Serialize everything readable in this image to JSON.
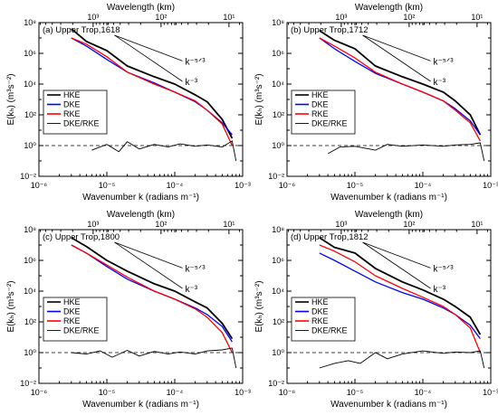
{
  "chart_data": [
    {
      "type": "line",
      "panel_label": "(a) Upper Trop,1618",
      "top_axis_label": "Wavelength (km)",
      "top_ticks": [
        "10³",
        "10²",
        "10¹"
      ],
      "x_ticks": [
        "10⁻⁶",
        "10⁻⁵",
        "10⁻⁴",
        "10⁻³"
      ],
      "y_ticks": [
        "10⁻²",
        "10⁰",
        "10²",
        "10⁴",
        "10⁶",
        "10⁸"
      ],
      "xlabel": "Wavenumber k (radians m⁻¹)",
      "ylabel": "E(kₕ) (m³s⁻²)",
      "xscale": "log",
      "yscale": "log",
      "xlim": [
        1e-06,
        0.001
      ],
      "ylim": [
        0.01,
        100000000.0
      ],
      "legend_position": "left",
      "ref_lines": [
        "k⁻⁵ᐟ³",
        "k⁻³"
      ],
      "dashed_reference": 1,
      "series": [
        {
          "name": "HKE",
          "color": "#000000",
          "x": [
            3e-06,
            5e-06,
            1e-05,
            2e-05,
            5e-05,
            0.0001,
            0.0002,
            0.0003,
            0.0005,
            0.0007
          ],
          "values": [
            40000000.0,
            6000000.0,
            1500000.0,
            150000.0,
            30000.0,
            10000.0,
            2000.0,
            700,
            50,
            3
          ]
        },
        {
          "name": "DKE",
          "color": "#0000ff",
          "x": [
            3e-06,
            5e-06,
            1e-05,
            2e-05,
            5e-05,
            0.0001,
            0.0002,
            0.0003,
            0.0005,
            0.0007
          ],
          "values": [
            10000000.0,
            3000000.0,
            400000.0,
            60000.0,
            12000.0,
            3000.0,
            700,
            200,
            30,
            5
          ]
        },
        {
          "name": "RKE",
          "color": "#ff0000",
          "x": [
            3e-06,
            5e-06,
            1e-05,
            2e-05,
            5e-05,
            0.0001,
            0.0002,
            0.0003,
            0.0005,
            0.0007
          ],
          "values": [
            10000000.0,
            4000000.0,
            600000.0,
            60000.0,
            10000.0,
            3000.0,
            800,
            200,
            25,
            1
          ]
        },
        {
          "name": "DKE/RKE",
          "color": "#000000",
          "x": [
            6e-06,
            1e-05,
            1.5e-05,
            2e-05,
            3e-05,
            5e-05,
            8e-05,
            0.00012,
            0.0002,
            0.0003,
            0.0005,
            0.0007,
            0.0008
          ],
          "values": [
            0.5,
            1.2,
            0.4,
            1.8,
            0.6,
            1.2,
            0.8,
            1.3,
            0.9,
            1.1,
            0.8,
            2,
            0.1
          ]
        }
      ]
    },
    {
      "type": "line",
      "panel_label": "(b) Upper Trop,1712",
      "top_axis_label": "Wavelength (km)",
      "top_ticks": [
        "10³",
        "10²",
        "10¹"
      ],
      "x_ticks": [
        "10⁻⁶",
        "10⁻⁵",
        "10⁻⁴",
        "10⁻³"
      ],
      "y_ticks": [
        "10⁻²",
        "10⁰",
        "10²",
        "10⁴",
        "10⁶",
        "10⁸"
      ],
      "xlabel": "Wavenumber k (radians m⁻¹)",
      "ylabel": "E(kₕ) (m³s⁻²)",
      "xscale": "log",
      "yscale": "log",
      "xlim": [
        1e-06,
        0.001
      ],
      "ylim": [
        0.01,
        100000000.0
      ],
      "legend_position": "left",
      "ref_lines": [
        "k⁻⁵ᐟ³",
        "k⁻³"
      ],
      "dashed_reference": 1,
      "series": [
        {
          "name": "HKE",
          "color": "#000000",
          "x": [
            3e-06,
            5e-06,
            1e-05,
            2e-05,
            5e-05,
            0.0001,
            0.0002,
            0.0003,
            0.0005,
            0.0007
          ],
          "values": [
            30000000.0,
            7000000.0,
            2000000.0,
            150000.0,
            30000.0,
            10000.0,
            3000.0,
            800,
            100,
            5
          ]
        },
        {
          "name": "DKE",
          "color": "#0000ff",
          "x": [
            3e-06,
            5e-06,
            1e-05,
            2e-05,
            5e-05,
            0.0001,
            0.0002,
            0.0003,
            0.0005,
            0.0007
          ],
          "values": [
            10000000.0,
            2000000.0,
            300000.0,
            50000.0,
            10000.0,
            3000.0,
            800,
            250,
            40,
            5
          ]
        },
        {
          "name": "RKE",
          "color": "#ff0000",
          "x": [
            3e-06,
            5e-06,
            1e-05,
            2e-05,
            5e-05,
            0.0001,
            0.0002,
            0.0003,
            0.0005,
            0.0007
          ],
          "values": [
            10000000.0,
            3000000.0,
            500000.0,
            60000.0,
            10000.0,
            3000.0,
            800,
            200,
            30,
            2
          ]
        },
        {
          "name": "DKE/RKE",
          "color": "#000000",
          "x": [
            4e-06,
            6e-06,
            1e-05,
            2e-05,
            3e-05,
            5e-05,
            0.0001,
            0.0002,
            0.0003,
            0.0005,
            0.0007,
            0.0008
          ],
          "values": [
            0.3,
            0.8,
            0.9,
            0.5,
            1.2,
            0.9,
            1.1,
            0.9,
            1.1,
            1.2,
            1.5,
            0.1
          ]
        }
      ]
    },
    {
      "type": "line",
      "panel_label": "(c) Upper Trop,1800",
      "top_axis_label": "Wavelength (km)",
      "top_ticks": [
        "10³",
        "10²",
        "10¹"
      ],
      "x_ticks": [
        "10⁻⁶",
        "10⁻⁵",
        "10⁻⁴",
        "10⁻³"
      ],
      "y_ticks": [
        "10⁻²",
        "10⁰",
        "10²",
        "10⁴",
        "10⁶",
        "10⁸"
      ],
      "xlabel": "Wavenumber k (radians m⁻¹)",
      "ylabel": "E(kₕ) (m³s⁻²)",
      "xscale": "log",
      "yscale": "log",
      "xlim": [
        1e-06,
        0.001
      ],
      "ylim": [
        0.01,
        100000000.0
      ],
      "legend_position": "left",
      "ref_lines": [
        "k⁻⁵ᐟ³",
        "k⁻³"
      ],
      "dashed_reference": 1,
      "series": [
        {
          "name": "HKE",
          "color": "#000000",
          "x": [
            3e-06,
            5e-06,
            1e-05,
            2e-05,
            5e-05,
            0.0001,
            0.0002,
            0.0003,
            0.0005,
            0.0007
          ],
          "values": [
            30000000.0,
            8000000.0,
            1000000.0,
            200000.0,
            30000.0,
            10000.0,
            2000.0,
            800,
            80,
            8
          ]
        },
        {
          "name": "DKE",
          "color": "#0000ff",
          "x": [
            3e-06,
            5e-06,
            1e-05,
            2e-05,
            5e-05,
            0.0001,
            0.0002,
            0.0003,
            0.0005,
            0.0007
          ],
          "values": [
            10000000.0,
            3000000.0,
            400000.0,
            60000.0,
            10000.0,
            3000.0,
            800,
            300,
            50,
            5
          ]
        },
        {
          "name": "RKE",
          "color": "#ff0000",
          "x": [
            3e-06,
            5e-06,
            1e-05,
            2e-05,
            5e-05,
            0.0001,
            0.0002,
            0.0003,
            0.0005,
            0.0007
          ],
          "values": [
            10000000.0,
            3000000.0,
            500000.0,
            80000.0,
            10000.0,
            3000.0,
            700,
            200,
            20,
            1
          ]
        },
        {
          "name": "DKE/RKE",
          "color": "#000000",
          "x": [
            3e-06,
            5e-06,
            8e-06,
            1.2e-05,
            2e-05,
            3e-05,
            5e-05,
            8e-05,
            0.00012,
            0.0002,
            0.0003,
            0.0005,
            0.0007,
            0.0008
          ],
          "values": [
            1,
            0.8,
            1.3,
            0.5,
            1.4,
            0.6,
            1.2,
            0.8,
            1.1,
            0.8,
            1.3,
            1.5,
            2,
            0.1
          ]
        }
      ]
    },
    {
      "type": "line",
      "panel_label": "(d) Upper Trop,1812",
      "top_axis_label": "Wavelength (km)",
      "top_ticks": [
        "10³",
        "10²",
        "10¹"
      ],
      "x_ticks": [
        "10⁻⁶",
        "10⁻⁵",
        "10⁻⁴",
        "10⁻³"
      ],
      "y_ticks": [
        "10⁻²",
        "10⁰",
        "10²",
        "10⁴",
        "10⁶",
        "10⁸"
      ],
      "xlabel": "Wavenumber k (radians m⁻¹)",
      "ylabel": "E(kₕ) (m³s⁻²)",
      "xscale": "log",
      "yscale": "log",
      "xlim": [
        1e-06,
        0.001
      ],
      "ylim": [
        0.01,
        100000000.0
      ],
      "legend_position": "left",
      "ref_lines": [
        "k⁻⁵ᐟ³",
        "k⁻³"
      ],
      "dashed_reference": 1,
      "series": [
        {
          "name": "HKE",
          "color": "#000000",
          "x": [
            3e-06,
            5e-06,
            1e-05,
            2e-05,
            5e-05,
            0.0001,
            0.0002,
            0.0003,
            0.0005,
            0.0007
          ],
          "values": [
            30000000.0,
            7000000.0,
            3000000.0,
            300000.0,
            40000.0,
            12000.0,
            3000.0,
            1000.0,
            200,
            15
          ]
        },
        {
          "name": "DKE",
          "color": "#0000ff",
          "x": [
            3e-06,
            5e-06,
            1e-05,
            2e-05,
            5e-05,
            0.0001,
            0.0002,
            0.0003,
            0.0005,
            0.0007
          ],
          "values": [
            3000000.0,
            1000000.0,
            200000.0,
            40000.0,
            8000.0,
            3000.0,
            800,
            300,
            60,
            8
          ]
        },
        {
          "name": "RKE",
          "color": "#ff0000",
          "x": [
            3e-06,
            5e-06,
            1e-05,
            2e-05,
            5e-05,
            0.0001,
            0.0002,
            0.0003,
            0.0005,
            0.0007
          ],
          "values": [
            10000000.0,
            4000000.0,
            800000.0,
            100000.0,
            15000.0,
            4000.0,
            1000.0,
            300,
            40,
            1
          ]
        },
        {
          "name": "DKE/RKE",
          "color": "#000000",
          "x": [
            3e-06,
            5e-06,
            8e-06,
            1.2e-05,
            2e-05,
            3e-05,
            5e-05,
            0.0001,
            0.0002,
            0.0003,
            0.0005,
            0.0007,
            0.0008
          ],
          "values": [
            0.1,
            0.2,
            0.3,
            0.2,
            1,
            0.4,
            0.8,
            1.3,
            0.9,
            1.1,
            1,
            1.3,
            0.1
          ]
        }
      ]
    }
  ]
}
